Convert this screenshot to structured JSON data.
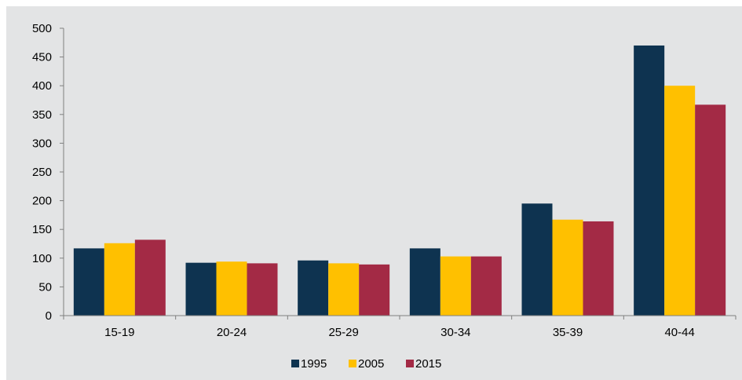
{
  "chart_data": {
    "type": "bar",
    "categories": [
      "15-19",
      "20-24",
      "25-29",
      "30-34",
      "35-39",
      "40-44"
    ],
    "series": [
      {
        "name": "1995",
        "color": "#0e3350",
        "values": [
          117,
          92,
          96,
          117,
          195,
          470
        ]
      },
      {
        "name": "2005",
        "color": "#ffc000",
        "values": [
          126,
          94,
          91,
          103,
          167,
          400
        ]
      },
      {
        "name": "2015",
        "color": "#a32a45",
        "values": [
          132,
          91,
          89,
          103,
          164,
          367
        ]
      }
    ],
    "ylim": [
      0,
      500
    ],
    "yticks": [
      0,
      50,
      100,
      150,
      200,
      250,
      300,
      350,
      400,
      450,
      500
    ],
    "grid": false,
    "legend_position": "bottom"
  }
}
